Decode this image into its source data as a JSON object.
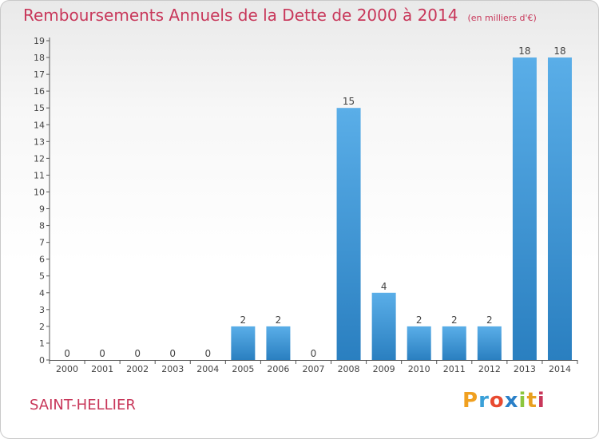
{
  "chart_data": {
    "type": "bar",
    "title": "Remboursements Annuels de la Dette de 2000 à 2014",
    "unit": "(en milliers d'€)",
    "categories": [
      "2000",
      "2001",
      "2002",
      "2003",
      "2004",
      "2005",
      "2006",
      "2007",
      "2008",
      "2009",
      "2010",
      "2011",
      "2012",
      "2013",
      "2014"
    ],
    "values": [
      0,
      0,
      0,
      0,
      0,
      2,
      2,
      0,
      15,
      4,
      2,
      2,
      2,
      18,
      18
    ],
    "ylim": [
      0,
      19
    ],
    "yticks": [
      0,
      1,
      2,
      3,
      4,
      5,
      6,
      7,
      8,
      9,
      10,
      11,
      12,
      13,
      14,
      15,
      16,
      17,
      18,
      19
    ],
    "xlabel": "",
    "ylabel": "",
    "grid": false,
    "bar_color_top": "#5aaee8",
    "bar_color_bottom": "#2a7fc0"
  },
  "footer": {
    "city": "SAINT-HELLIER",
    "logo_letters": [
      "P",
      "r",
      "o",
      "x",
      "i",
      "t",
      "i"
    ],
    "logo_colors": [
      "#f0a020",
      "#3aa0d8",
      "#e84a30",
      "#2a80c8",
      "#8cc63e",
      "#e8a020",
      "#c8375a"
    ]
  }
}
